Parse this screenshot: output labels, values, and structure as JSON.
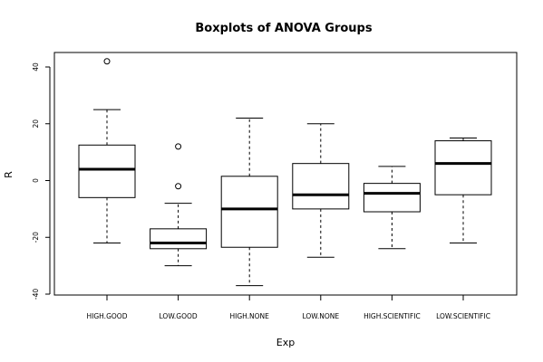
{
  "chart_data": {
    "type": "boxplot",
    "title": "Boxplots of ANOVA Groups",
    "xlabel": "Exp",
    "ylabel": "R",
    "ylim": [
      -40,
      45
    ],
    "yticks": [
      -40,
      -20,
      0,
      20,
      40
    ],
    "grid": false,
    "categories": [
      "HIGH.GOOD",
      "LOW.GOOD",
      "HIGH.NONE",
      "LOW.NONE",
      "HIGH.SCIENTIFIC",
      "LOW.SCIENTIFIC"
    ],
    "boxes": [
      {
        "whisker_low": -22,
        "q1": -6,
        "median": 4,
        "q3": 12.5,
        "whisker_high": 25,
        "outliers": [
          42
        ]
      },
      {
        "whisker_low": -30,
        "q1": -24,
        "median": -22,
        "q3": -17,
        "whisker_high": -8,
        "outliers": [
          12,
          -2
        ]
      },
      {
        "whisker_low": -37,
        "q1": -23.5,
        "median": -10,
        "q3": 1.5,
        "whisker_high": 22,
        "outliers": []
      },
      {
        "whisker_low": -27,
        "q1": -10,
        "median": -5,
        "q3": 6,
        "whisker_high": 20,
        "outliers": []
      },
      {
        "whisker_low": -24,
        "q1": -11,
        "median": -4.5,
        "q3": -1,
        "whisker_high": 5,
        "outliers": []
      },
      {
        "whisker_low": -22,
        "q1": -5,
        "median": 6,
        "q3": 14,
        "whisker_high": 15,
        "outliers": []
      }
    ]
  }
}
